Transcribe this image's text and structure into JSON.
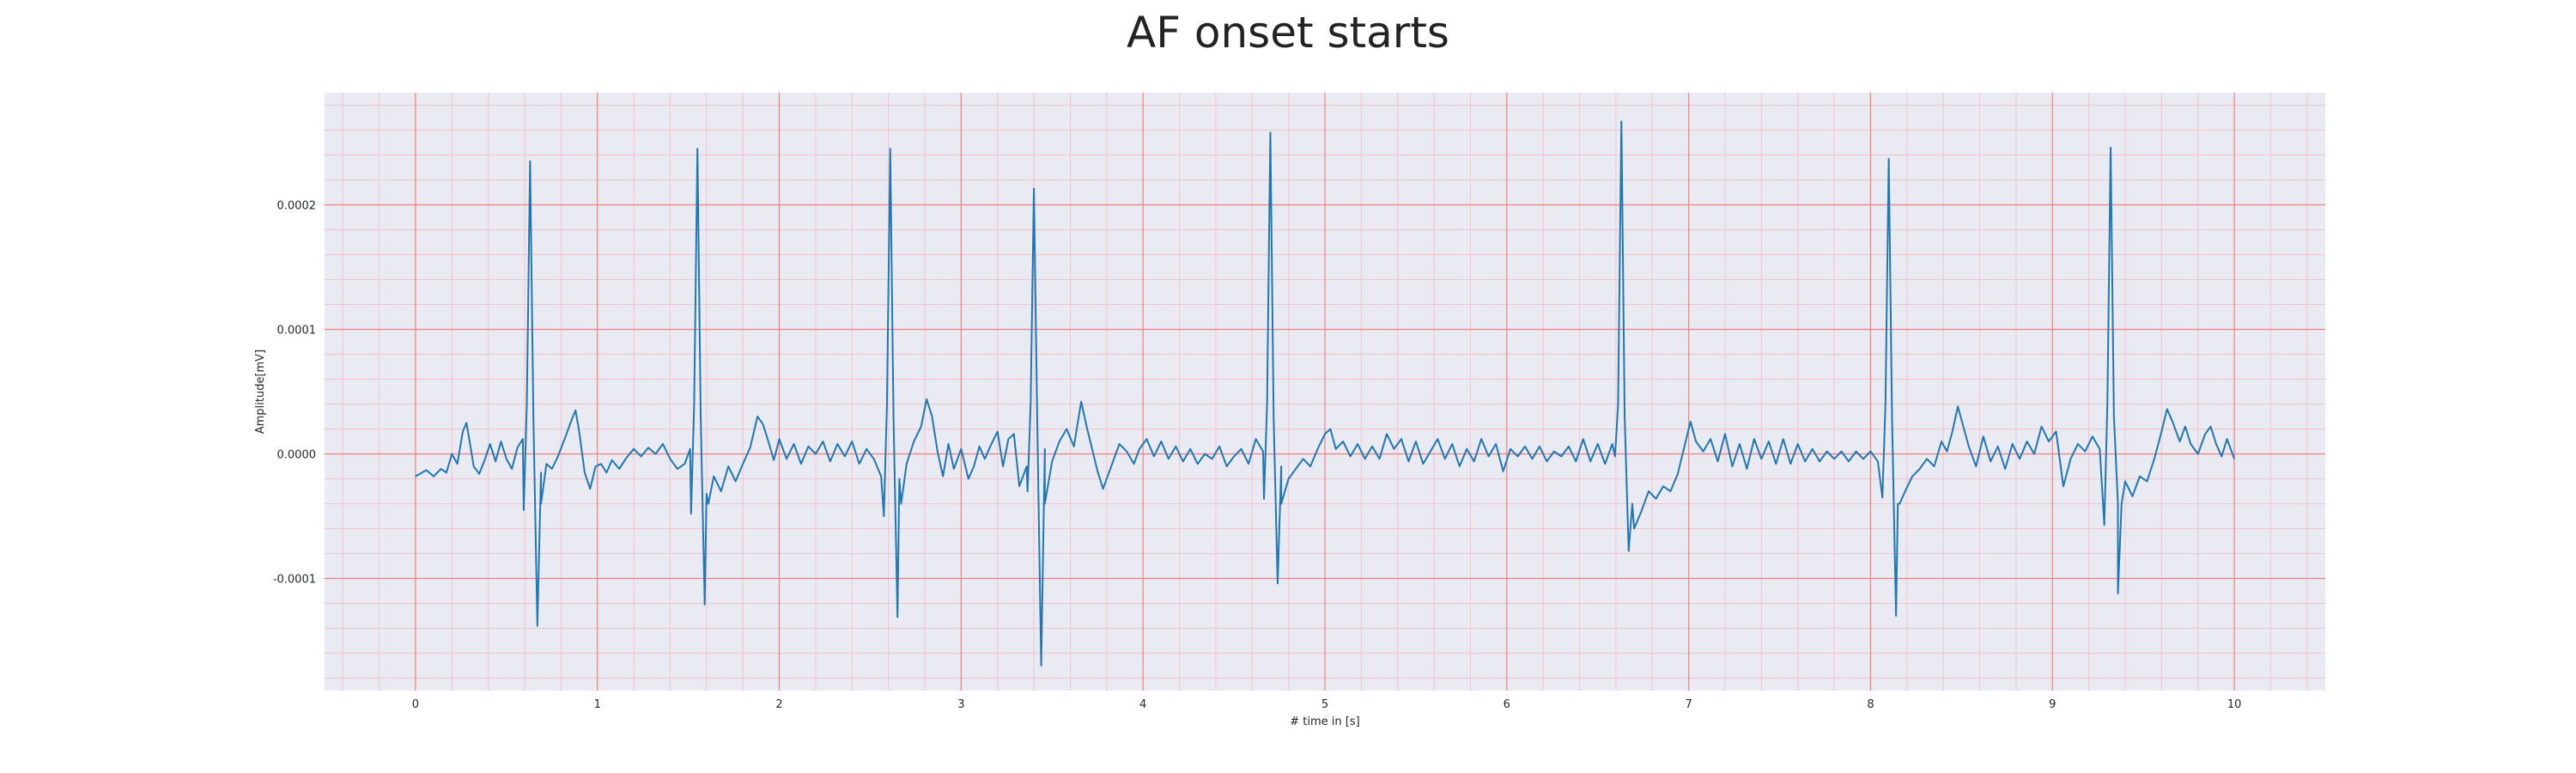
{
  "chart_data": {
    "type": "line",
    "title": "AF onset starts",
    "xlabel": "# time in [s]",
    "ylabel": "Amplitude[mV]",
    "xlim": [
      -0.5,
      10.5
    ],
    "ylim": [
      -0.00019,
      0.00029
    ],
    "xticks": [
      0,
      1,
      2,
      3,
      4,
      5,
      6,
      7,
      8,
      9,
      10
    ],
    "xtick_labels": [
      "0",
      "1",
      "2",
      "3",
      "4",
      "5",
      "6",
      "7",
      "8",
      "9",
      "10"
    ],
    "yticks": [
      -0.0001,
      0.0,
      0.0001,
      0.0002
    ],
    "ytick_labels": [
      "-0.0001",
      "0.0000",
      "0.0001",
      "0.0002"
    ],
    "grid": "on",
    "grid_major_color": "#f08080",
    "grid_minor_color": "#f4c4cc",
    "background_color": "#eaeaf2",
    "series": [
      {
        "color": "#1f77b4",
        "baseline": [
          [
            0.0,
            -1.8e-05
          ],
          [
            0.06,
            -1.3e-05
          ],
          [
            0.1,
            -1.8e-05
          ],
          [
            0.14,
            -1.2e-05
          ],
          [
            0.17,
            -1.5e-05
          ],
          [
            0.2,
            0.0
          ],
          [
            0.23,
            -8e-06
          ],
          [
            0.26,
            1.8e-05
          ],
          [
            0.28,
            2.5e-05
          ],
          [
            0.3,
            8e-06
          ],
          [
            0.32,
            -1e-05
          ],
          [
            0.35,
            -1.6e-05
          ],
          [
            0.38,
            -5e-06
          ],
          [
            0.41,
            8e-06
          ],
          [
            0.44,
            -6e-06
          ],
          [
            0.47,
            1e-05
          ],
          [
            0.5,
            -4e-06
          ],
          [
            0.53,
            -1.2e-05
          ],
          [
            0.56,
            5e-06
          ],
          [
            0.59,
            1.2e-05
          ],
          [
            0.69,
            -1.5e-05
          ],
          [
            0.72,
            -8e-06
          ],
          [
            0.75,
            -1.2e-05
          ],
          [
            0.78,
            -3e-06
          ],
          [
            0.82,
            1.2e-05
          ],
          [
            0.86,
            2.8e-05
          ],
          [
            0.88,
            3.5e-05
          ],
          [
            0.9,
            1.8e-05
          ],
          [
            0.93,
            -1.5e-05
          ],
          [
            0.96,
            -2.8e-05
          ],
          [
            0.99,
            -1e-05
          ],
          [
            1.02,
            -8e-06
          ],
          [
            1.05,
            -1.5e-05
          ],
          [
            1.08,
            -5e-06
          ],
          [
            1.12,
            -1.2e-05
          ],
          [
            1.16,
            -3e-06
          ],
          [
            1.2,
            4e-06
          ],
          [
            1.24,
            -2e-06
          ],
          [
            1.28,
            5e-06
          ],
          [
            1.32,
            0.0
          ],
          [
            1.36,
            8e-06
          ],
          [
            1.4,
            -4e-06
          ],
          [
            1.44,
            -1.2e-05
          ],
          [
            1.48,
            -8e-06
          ],
          [
            1.51,
            4e-06
          ],
          [
            1.6,
            -3.2e-05
          ],
          [
            1.64,
            -1.8e-05
          ],
          [
            1.68,
            -3e-05
          ],
          [
            1.72,
            -1e-05
          ],
          [
            1.76,
            -2.2e-05
          ],
          [
            1.8,
            -8e-06
          ],
          [
            1.84,
            5e-06
          ],
          [
            1.88,
            3e-05
          ],
          [
            1.91,
            2.4e-05
          ],
          [
            1.94,
            1e-05
          ],
          [
            1.97,
            -5e-06
          ],
          [
            2.0,
            1.2e-05
          ],
          [
            2.04,
            -4e-06
          ],
          [
            2.08,
            8e-06
          ],
          [
            2.12,
            -8e-06
          ],
          [
            2.16,
            6e-06
          ],
          [
            2.2,
            0.0
          ],
          [
            2.24,
            1e-05
          ],
          [
            2.28,
            -6e-06
          ],
          [
            2.32,
            8e-06
          ],
          [
            2.36,
            -2e-06
          ],
          [
            2.4,
            1e-05
          ],
          [
            2.44,
            -8e-06
          ],
          [
            2.48,
            4e-06
          ],
          [
            2.52,
            -4e-06
          ],
          [
            2.56,
            -1.8e-05
          ],
          [
            2.66,
            -2e-05
          ],
          [
            2.7,
            -8e-06
          ],
          [
            2.74,
            1e-05
          ],
          [
            2.78,
            2.2e-05
          ],
          [
            2.81,
            4.4e-05
          ],
          [
            2.84,
            3e-05
          ],
          [
            2.87,
            2e-06
          ],
          [
            2.9,
            -1.8e-05
          ],
          [
            2.93,
            8e-06
          ],
          [
            2.96,
            -1.2e-05
          ],
          [
            3.0,
            4e-06
          ],
          [
            3.04,
            -2e-05
          ],
          [
            3.07,
            -1e-05
          ],
          [
            3.1,
            6e-06
          ],
          [
            3.13,
            -4e-06
          ],
          [
            3.16,
            6e-06
          ],
          [
            3.2,
            1.8e-05
          ],
          [
            3.23,
            -1e-05
          ],
          [
            3.26,
            1.2e-05
          ],
          [
            3.29,
            1.6e-05
          ],
          [
            3.32,
            -2.6e-05
          ],
          [
            3.36,
            -1e-05
          ],
          [
            3.46,
            4e-06
          ],
          [
            3.5,
            -6e-06
          ],
          [
            3.54,
            1e-05
          ],
          [
            3.58,
            2e-05
          ],
          [
            3.62,
            6e-06
          ],
          [
            3.66,
            4.2e-05
          ],
          [
            3.69,
            2.2e-05
          ],
          [
            3.72,
            4e-06
          ],
          [
            3.75,
            -1.4e-05
          ],
          [
            3.78,
            -2.8e-05
          ],
          [
            3.81,
            -1.6e-05
          ],
          [
            3.84,
            -4e-06
          ],
          [
            3.87,
            8e-06
          ],
          [
            3.91,
            2e-06
          ],
          [
            3.95,
            -8e-06
          ],
          [
            3.98,
            4e-06
          ],
          [
            4.02,
            1.2e-05
          ],
          [
            4.06,
            -2e-06
          ],
          [
            4.1,
            1e-05
          ],
          [
            4.14,
            -4e-06
          ],
          [
            4.18,
            6e-06
          ],
          [
            4.22,
            -6e-06
          ],
          [
            4.26,
            4e-06
          ],
          [
            4.3,
            -8e-06
          ],
          [
            4.34,
            0.0
          ],
          [
            4.38,
            -4e-06
          ],
          [
            4.42,
            6e-06
          ],
          [
            4.46,
            -1e-05
          ],
          [
            4.5,
            -2e-06
          ],
          [
            4.54,
            4e-06
          ],
          [
            4.58,
            -8e-06
          ],
          [
            4.62,
            1.2e-05
          ],
          [
            4.66,
            2e-06
          ],
          [
            4.76,
            -1e-05
          ],
          [
            4.8,
            -2e-05
          ],
          [
            4.84,
            -1.2e-05
          ],
          [
            4.88,
            -4e-06
          ],
          [
            4.92,
            -1e-05
          ],
          [
            4.96,
            4e-06
          ],
          [
            5.0,
            1.6e-05
          ],
          [
            5.03,
            2e-05
          ],
          [
            5.06,
            4e-06
          ],
          [
            5.1,
            1e-05
          ],
          [
            5.14,
            -2e-06
          ],
          [
            5.18,
            8e-06
          ],
          [
            5.22,
            -4e-06
          ],
          [
            5.26,
            6e-06
          ],
          [
            5.3,
            -4e-06
          ],
          [
            5.34,
            1.6e-05
          ],
          [
            5.38,
            4e-06
          ],
          [
            5.42,
            1.2e-05
          ],
          [
            5.46,
            -6e-06
          ],
          [
            5.5,
            1e-05
          ],
          [
            5.54,
            -8e-06
          ],
          [
            5.58,
            2e-06
          ],
          [
            5.62,
            1.2e-05
          ],
          [
            5.66,
            -4e-06
          ],
          [
            5.7,
            8e-06
          ],
          [
            5.74,
            -1e-05
          ],
          [
            5.78,
            4e-06
          ],
          [
            5.82,
            -6e-06
          ],
          [
            5.86,
            1.2e-05
          ],
          [
            5.9,
            -2e-06
          ],
          [
            5.94,
            8e-06
          ],
          [
            5.98,
            -1.4e-05
          ],
          [
            6.02,
            4e-06
          ],
          [
            6.06,
            -2e-06
          ],
          [
            6.1,
            6e-06
          ],
          [
            6.14,
            -4e-06
          ],
          [
            6.18,
            6e-06
          ],
          [
            6.22,
            -6e-06
          ],
          [
            6.26,
            2e-06
          ],
          [
            6.3,
            -2e-06
          ],
          [
            6.34,
            6e-06
          ],
          [
            6.38,
            -6e-06
          ],
          [
            6.42,
            1.2e-05
          ],
          [
            6.46,
            -6e-06
          ],
          [
            6.5,
            8e-06
          ],
          [
            6.54,
            -8e-06
          ],
          [
            6.58,
            8e-06
          ],
          [
            6.7,
            -6e-05
          ],
          [
            6.74,
            -4.6e-05
          ],
          [
            6.78,
            -3e-05
          ],
          [
            6.82,
            -3.6e-05
          ],
          [
            6.86,
            -2.6e-05
          ],
          [
            6.9,
            -3e-05
          ],
          [
            6.94,
            -1.6e-05
          ],
          [
            6.98,
            8e-06
          ],
          [
            7.01,
            2.6e-05
          ],
          [
            7.04,
            1e-05
          ],
          [
            7.08,
            2e-06
          ],
          [
            7.12,
            1.2e-05
          ],
          [
            7.16,
            -6e-06
          ],
          [
            7.2,
            1.6e-05
          ],
          [
            7.24,
            -1e-05
          ],
          [
            7.28,
            8e-06
          ],
          [
            7.32,
            -1.2e-05
          ],
          [
            7.36,
            1.2e-05
          ],
          [
            7.4,
            -4e-06
          ],
          [
            7.44,
            1e-05
          ],
          [
            7.48,
            -8e-06
          ],
          [
            7.52,
            1.2e-05
          ],
          [
            7.56,
            -8e-06
          ],
          [
            7.6,
            8e-06
          ],
          [
            7.64,
            -6e-06
          ],
          [
            7.68,
            4e-06
          ],
          [
            7.72,
            -6e-06
          ],
          [
            7.76,
            2e-06
          ],
          [
            7.8,
            -4e-06
          ],
          [
            7.84,
            2e-06
          ],
          [
            7.88,
            -6e-06
          ],
          [
            7.92,
            2e-06
          ],
          [
            7.96,
            -4e-06
          ],
          [
            8.0,
            2e-06
          ],
          [
            8.04,
            -6e-06
          ],
          [
            8.15,
            -4e-05
          ],
          [
            8.19,
            -3e-05
          ],
          [
            8.23,
            -1.8e-05
          ],
          [
            8.27,
            -1.2e-05
          ],
          [
            8.31,
            -4e-06
          ],
          [
            8.35,
            -1e-05
          ],
          [
            8.39,
            1e-05
          ],
          [
            8.42,
            2e-06
          ],
          [
            8.45,
            1.8e-05
          ],
          [
            8.48,
            3.8e-05
          ],
          [
            8.51,
            2.2e-05
          ],
          [
            8.54,
            6e-06
          ],
          [
            8.58,
            -1e-05
          ],
          [
            8.62,
            1.4e-05
          ],
          [
            8.66,
            -6e-06
          ],
          [
            8.7,
            6e-06
          ],
          [
            8.74,
            -1.2e-05
          ],
          [
            8.78,
            8e-06
          ],
          [
            8.82,
            -4e-06
          ],
          [
            8.86,
            1e-05
          ],
          [
            8.9,
            0.0
          ],
          [
            8.94,
            2.2e-05
          ],
          [
            8.98,
            1e-05
          ],
          [
            9.02,
            1.8e-05
          ],
          [
            9.06,
            -2.6e-05
          ],
          [
            9.1,
            -4e-06
          ],
          [
            9.14,
            8e-06
          ],
          [
            9.18,
            2e-06
          ],
          [
            9.22,
            1.4e-05
          ],
          [
            9.26,
            4e-06
          ],
          [
            9.36,
            -4e-05
          ],
          [
            9.4,
            -2.2e-05
          ],
          [
            9.44,
            -3.4e-05
          ],
          [
            9.48,
            -1.8e-05
          ],
          [
            9.52,
            -2.2e-05
          ],
          [
            9.56,
            -4e-06
          ],
          [
            9.6,
            1.8e-05
          ],
          [
            9.63,
            3.6e-05
          ],
          [
            9.66,
            2.6e-05
          ],
          [
            9.7,
            1e-05
          ],
          [
            9.73,
            2.2e-05
          ],
          [
            9.76,
            8e-06
          ],
          [
            9.8,
            0.0
          ],
          [
            9.84,
            1.6e-05
          ],
          [
            9.87,
            2.2e-05
          ],
          [
            9.9,
            8e-06
          ],
          [
            9.93,
            -2e-06
          ],
          [
            9.96,
            1.2e-05
          ],
          [
            10.0,
            -4e-06
          ]
        ],
        "r_peaks": [
          {
            "t": 0.63,
            "peak": 0.000235,
            "q": -4.5e-05,
            "s": -0.000138
          },
          {
            "t": 1.55,
            "peak": 0.000245,
            "q": -4.8e-05,
            "s": -0.000121
          },
          {
            "t": 2.61,
            "peak": 0.000245,
            "q": -5e-05,
            "s": -0.000131
          },
          {
            "t": 3.4,
            "peak": 0.000213,
            "q": -3e-05,
            "s": -0.00017
          },
          {
            "t": 4.7,
            "peak": 0.000258,
            "q": -3.6e-05,
            "s": -0.000104
          },
          {
            "t": 6.63,
            "peak": 0.000267,
            "q": -2e-06,
            "s": -7.8e-05
          },
          {
            "t": 8.1,
            "peak": 0.000237,
            "q": -3.5e-05,
            "s": -0.00013
          },
          {
            "t": 9.32,
            "peak": 0.000246,
            "q": -5.7e-05,
            "s": -0.000112
          }
        ]
      }
    ]
  }
}
